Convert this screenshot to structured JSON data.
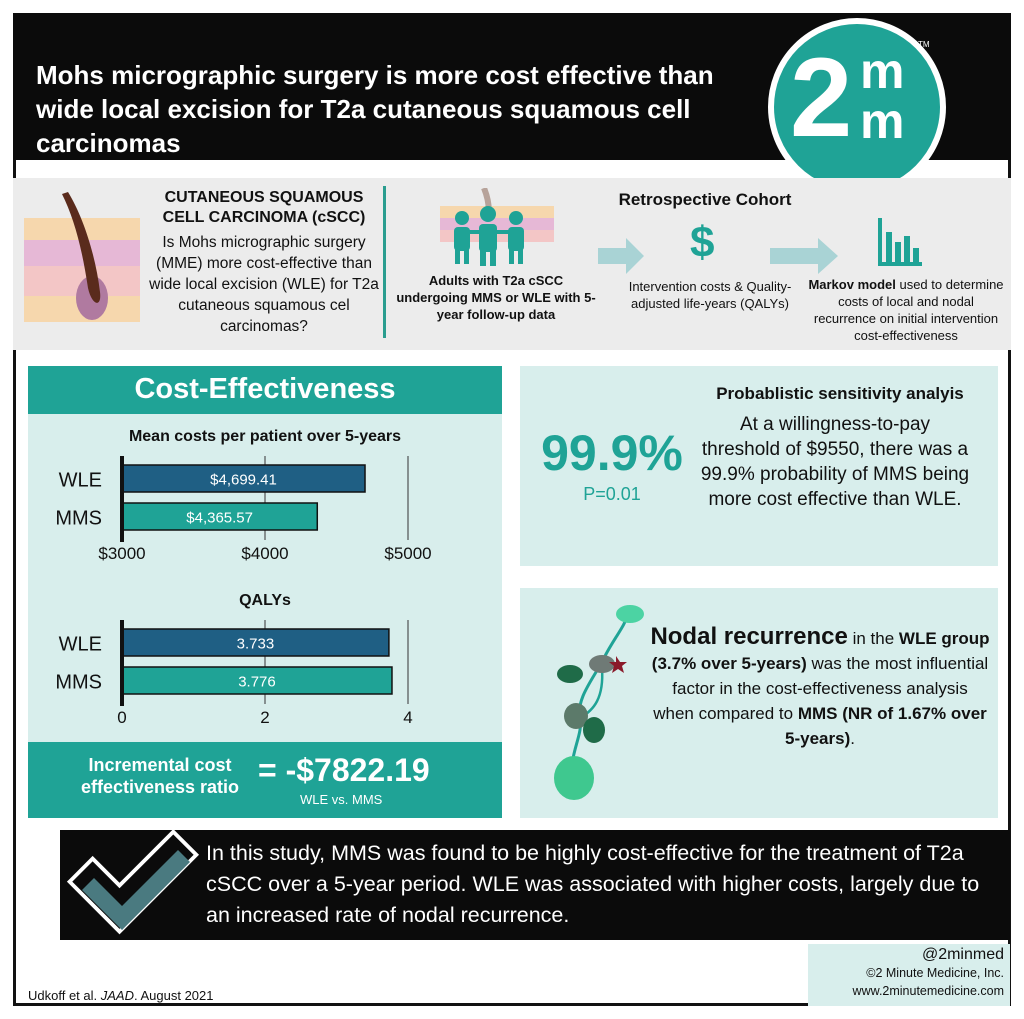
{
  "header": {
    "title": "Mohs micrographic surgery is more cost effective than wide local excision for T2a cutaneous squamous cell carcinomas",
    "logo": {
      "big": "2",
      "small_top": "m",
      "small_bottom": "m",
      "tm": "TM"
    }
  },
  "overview": {
    "question_heading": "CUTANEOUS SQUAMOUS CELL CARCINOMA (cSCC)",
    "question_body": "Is Mohs micrographic surgery (MME) more cost-effective than wide local excision (WLE) for T2a cutaneous squamous cel carcinomas?",
    "cohort_title": "Retrospective Cohort",
    "step1": "Adults with T2a cSCC undergoing MMS or WLE with 5-year follow-up data",
    "step2_icon": "$",
    "step2": "Intervention costs & Quality-adjusted life-years (QALYs)",
    "step3_bold": "Markov model",
    "step3_rest": " used to determine costs of local and nodal recurrence on initial intervention cost-effectiveness"
  },
  "cost_effectiveness": {
    "header": "Cost-Effectiveness",
    "icer_label": "Incremental cost effectiveness ratio",
    "icer_value": "= -$7822.19",
    "icer_sub": "WLE vs. MMS"
  },
  "chart_data": [
    {
      "type": "bar",
      "orientation": "horizontal",
      "title": "Mean costs per patient over 5-years",
      "categories": [
        "WLE",
        "MMS"
      ],
      "values": [
        4699.41,
        4365.57
      ],
      "data_labels": [
        "$4,699.41",
        "$4,365.57"
      ],
      "colors": [
        "#1f5f84",
        "#1fa396"
      ],
      "xlim": [
        3000,
        5000
      ],
      "ticks": [
        3000,
        4000,
        5000
      ],
      "tick_labels": [
        "$3000",
        "$4000",
        "$5000"
      ],
      "grid": true
    },
    {
      "type": "bar",
      "orientation": "horizontal",
      "title": "QALYs",
      "categories": [
        "WLE",
        "MMS"
      ],
      "values": [
        3.733,
        3.776
      ],
      "data_labels": [
        "3.733",
        "3.776"
      ],
      "colors": [
        "#1f5f84",
        "#1fa396"
      ],
      "xlim": [
        0,
        4
      ],
      "ticks": [
        0,
        2,
        4
      ],
      "tick_labels": [
        "0",
        "2",
        "4"
      ],
      "grid": true
    }
  ],
  "psa": {
    "big_value": "99.9%",
    "p_value": "P=0.01",
    "heading": "Probablistic sensitivity analyis",
    "body": "At a willingness-to-pay threshold of $9550, there was a 99.9% probability of MMS being more cost effective than WLE."
  },
  "nodal": {
    "lead": "Nodal recurrence",
    "t1": " in the ",
    "group": "WLE group (3.7% over 5-years)",
    "t2": " was the most influential factor in the cost-effectiveness analysis when compared to ",
    "mms": "MMS",
    "nr": "(NR of 1.67% over 5-years)",
    "end": "."
  },
  "conclusion": "In this study, MMS was found to be highly cost-effective for the treatment of T2a cSCC over a 5-year period. WLE was associated with higher costs, largely due to an increased rate of nodal recurrence.",
  "footer": {
    "handle": "@2minmed",
    "copyright": "©2 Minute Medicine, Inc.",
    "website": "www.2minutemedicine.com",
    "citation_pre": "Udkoff et al. ",
    "citation_journal": "JAAD",
    "citation_post": ". August 2021"
  },
  "colors": {
    "teal": "#1fa396",
    "navy_bar": "#1f5f84",
    "panel_bg": "#d8eeec",
    "header_bg": "#0b0b0b"
  }
}
